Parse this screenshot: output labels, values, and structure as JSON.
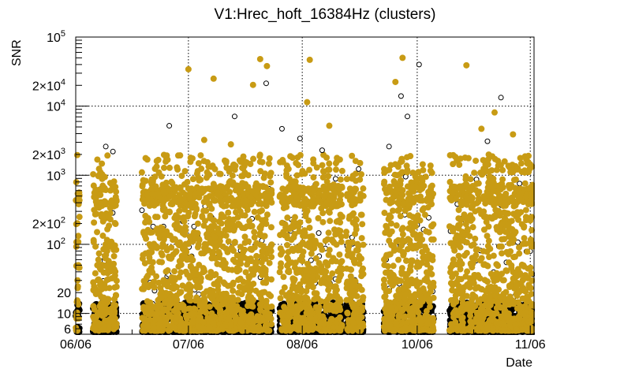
{
  "chart_data": {
    "type": "scatter",
    "title": "V1:Hrec_hoft_16384Hz (clusters)",
    "xlabel": "Date",
    "ylabel": "SNR",
    "x_unit": "days since 06/06",
    "xlim": [
      0,
      122
    ],
    "ylim": [
      5,
      100000
    ],
    "y_scale": "log",
    "grid": true,
    "x_ticks": [
      {
        "value": 0,
        "label": "06/06"
      },
      {
        "value": 30,
        "label": "07/06"
      },
      {
        "value": 60.3,
        "label": "08/06"
      },
      {
        "value": 90.9,
        "label": "10/06"
      },
      {
        "value": 121,
        "label": "11/06"
      }
    ],
    "y_ticks": [
      {
        "value": 100000,
        "base": "10",
        "exp": "5"
      },
      {
        "value": 20000,
        "base": "2×10",
        "exp": "4"
      },
      {
        "value": 10000,
        "base": "10",
        "exp": "4"
      },
      {
        "value": 2000,
        "base": "2×10",
        "exp": "3"
      },
      {
        "value": 1000,
        "base": "10",
        "exp": "3"
      },
      {
        "value": 200,
        "base": "2×10",
        "exp": "2"
      },
      {
        "value": 100,
        "base": "10",
        "exp": "2"
      },
      {
        "value": 20,
        "base": "20",
        "exp": ""
      },
      {
        "value": 10,
        "base": "10",
        "exp": ""
      },
      {
        "value": 6,
        "base": "6",
        "exp": ""
      }
    ],
    "series_colors": {
      "clusters": "#c89b14",
      "low_snr": "#000000",
      "open": "#ffffff"
    },
    "data_segments_days": [
      [
        0,
        1
      ],
      [
        4.6,
        10.9
      ],
      [
        17.6,
        52.2
      ],
      [
        54.3,
        71
      ],
      [
        72,
        76.6
      ],
      [
        82,
        95.3
      ],
      [
        99.5,
        122
      ]
    ],
    "notable_clusters": [
      {
        "x": 30,
        "y": 34200
      },
      {
        "x": 36.7,
        "y": 25000
      },
      {
        "x": 49.1,
        "y": 48000
      },
      {
        "x": 47.2,
        "y": 20300
      },
      {
        "x": 50.9,
        "y": 38000
      },
      {
        "x": 62.3,
        "y": 46800
      },
      {
        "x": 61.6,
        "y": 11400
      },
      {
        "x": 67.5,
        "y": 5200
      },
      {
        "x": 87,
        "y": 50000
      },
      {
        "x": 85.1,
        "y": 22400
      },
      {
        "x": 104,
        "y": 39000
      },
      {
        "x": 108,
        "y": 4700
      },
      {
        "x": 111.5,
        "y": 8100
      },
      {
        "x": 116.4,
        "y": 3900
      },
      {
        "x": 34.2,
        "y": 3240
      },
      {
        "x": 41.3,
        "y": 2800
      }
    ],
    "notable_open_markers": [
      {
        "x": 24.9,
        "y": 5200
      },
      {
        "x": 42.3,
        "y": 7100
      },
      {
        "x": 54.9,
        "y": 4700
      },
      {
        "x": 59.7,
        "y": 3400
      },
      {
        "x": 50.7,
        "y": 21400
      },
      {
        "x": 86.6,
        "y": 14000
      },
      {
        "x": 88.3,
        "y": 7100
      },
      {
        "x": 91.4,
        "y": 40000
      },
      {
        "x": 113.2,
        "y": 13300
      },
      {
        "x": 109.6,
        "y": 3100
      },
      {
        "x": 83.4,
        "y": 2600
      },
      {
        "x": 8,
        "y": 2600
      },
      {
        "x": 9.9,
        "y": 2200
      },
      {
        "x": 65.6,
        "y": 2300
      },
      {
        "x": 75.3,
        "y": 1230
      }
    ]
  }
}
